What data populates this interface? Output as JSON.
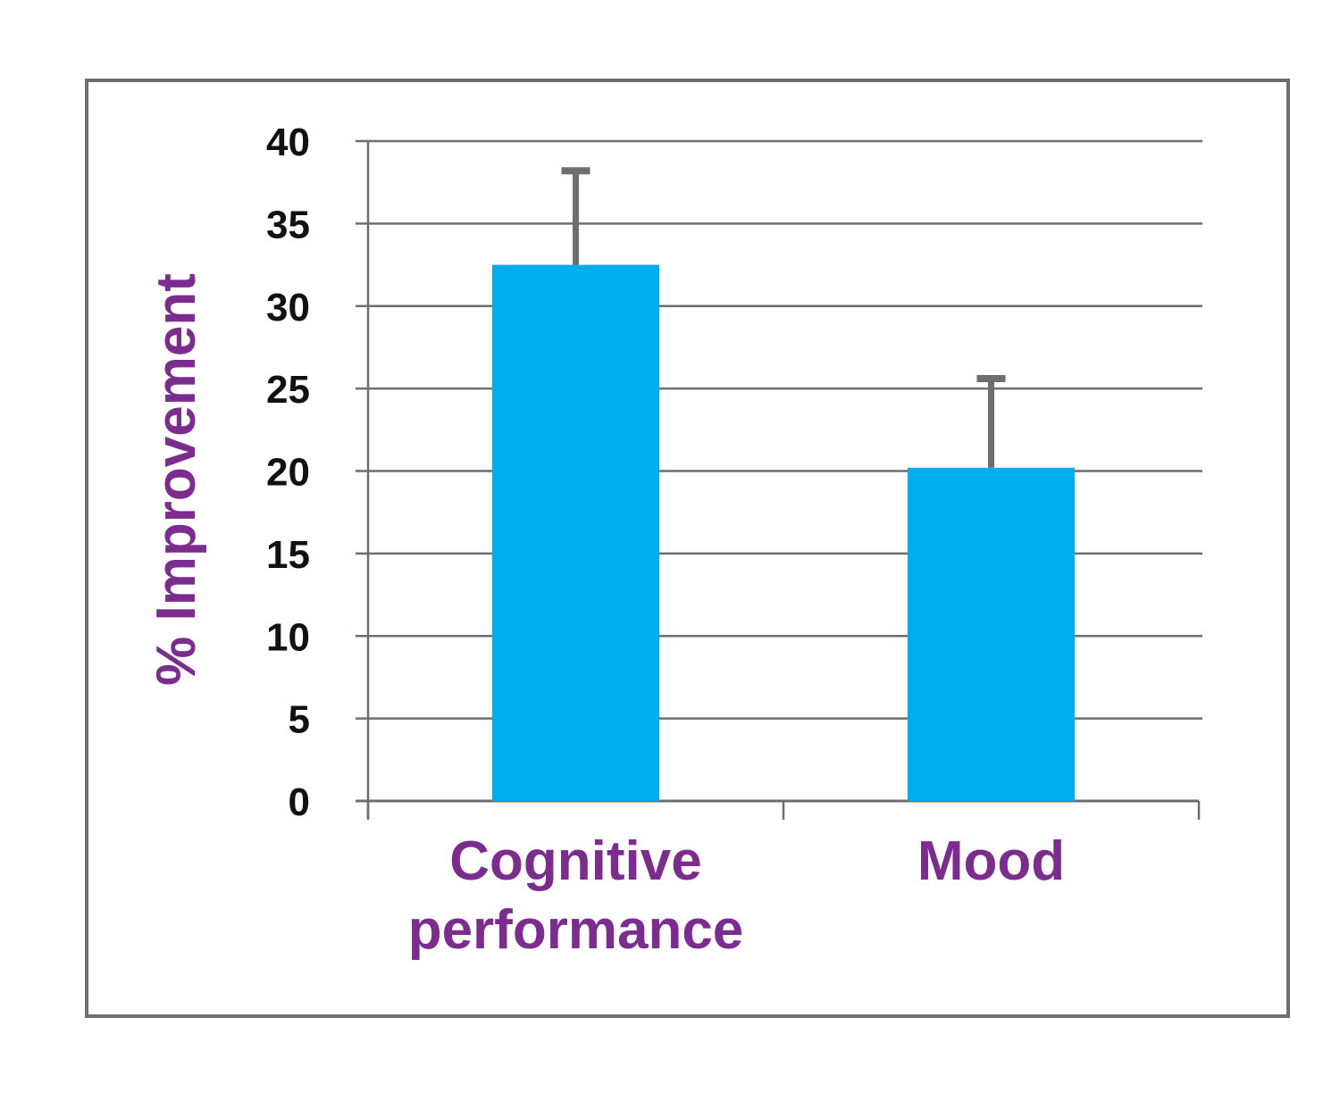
{
  "chart_data": {
    "type": "bar",
    "categories": [
      "Cognitive performance",
      "Mood"
    ],
    "category_lines": [
      [
        "Cognitive",
        "performance"
      ],
      [
        "Mood"
      ]
    ],
    "values": [
      32.5,
      20.2
    ],
    "error_upper": [
      38.2,
      25.6
    ],
    "title": "",
    "xlabel": "",
    "ylabel": "% Improvement",
    "ylim": [
      0,
      40
    ],
    "yticks": [
      0,
      5,
      10,
      15,
      20,
      25,
      30,
      35,
      40
    ],
    "grid": true,
    "legend": "none"
  },
  "colors": {
    "bar": "#00AEEF",
    "error_bar": "#6D6E71",
    "label": "#7B2C8E",
    "grid": "#6D6E71",
    "frame": "#6D6E71"
  }
}
